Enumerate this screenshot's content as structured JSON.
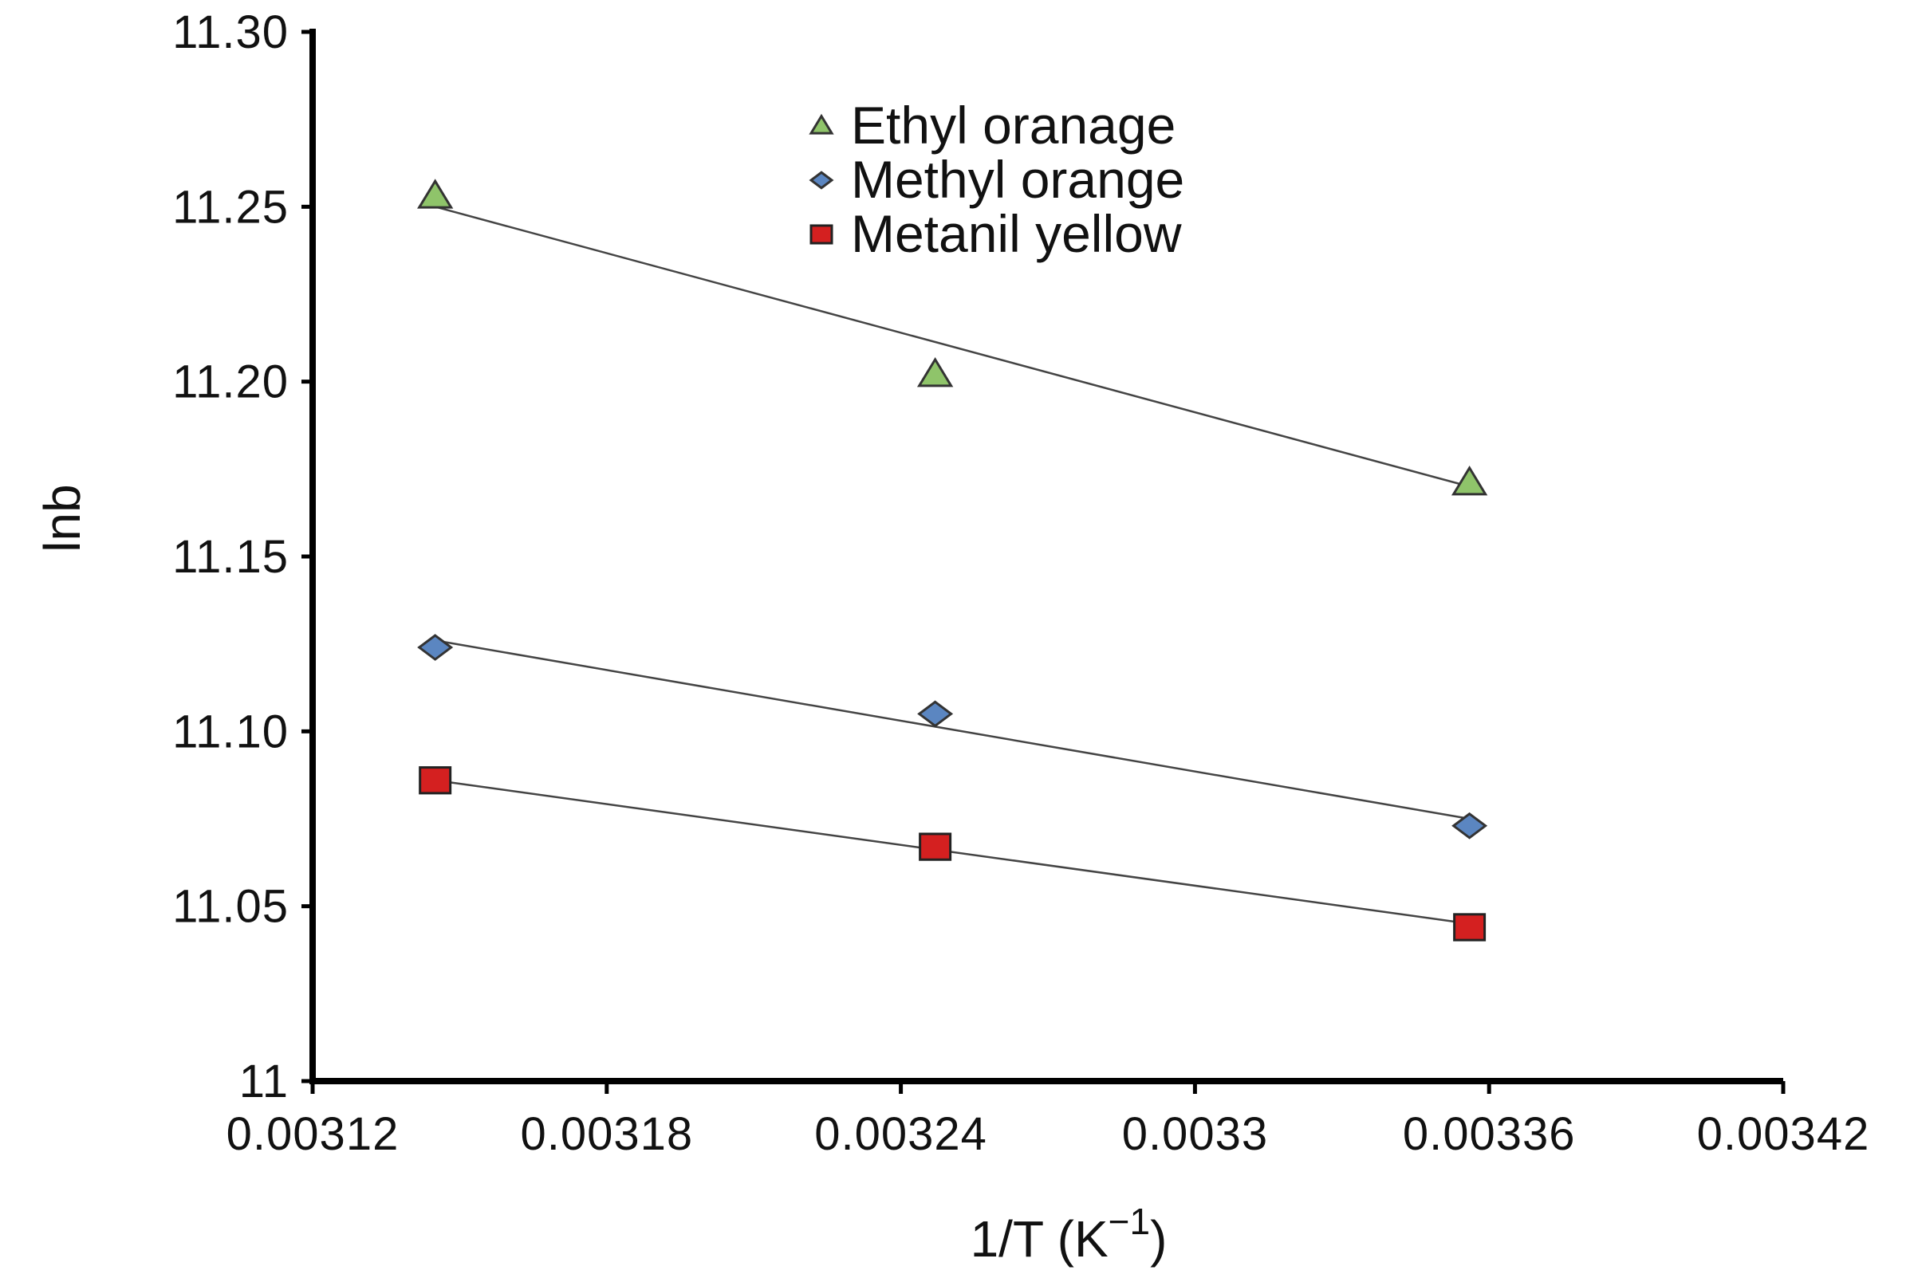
{
  "chart_data": {
    "type": "scatter",
    "title": "",
    "xlabel": "1/T (K",
    "xlabel_sup": "−1",
    "xlabel_close": ")",
    "ylabel": "lnb",
    "xlim": [
      0.00312,
      0.00342
    ],
    "ylim": [
      11,
      11.3
    ],
    "x_ticks": [
      0.00312,
      0.00318,
      0.00324,
      0.0033,
      0.00336,
      0.00342
    ],
    "x_tick_labels": [
      "0.00312",
      "0.00318",
      "0.00324",
      "0.0033",
      "0.00336",
      "0.00342"
    ],
    "y_ticks": [
      11,
      11.05,
      11.1,
      11.15,
      11.2,
      11.25,
      11.3
    ],
    "y_tick_labels": [
      "11",
      "11.05",
      "11.10",
      "11.15",
      "11.20",
      "11.25",
      "11.30"
    ],
    "grid": false,
    "legend_position": "top-center",
    "series": [
      {
        "name": "Ethyl oranage",
        "marker": "triangle",
        "color": "#8fc46a",
        "x": [
          0.003145,
          0.003247,
          0.003356
        ],
        "y": [
          11.253,
          11.202,
          11.171
        ],
        "trendline": {
          "x": [
            0.003145,
            0.003356
          ],
          "y": [
            11.25,
            11.17
          ]
        }
      },
      {
        "name": "Methyl orange",
        "marker": "diamond",
        "color": "#5b86c1",
        "x": [
          0.003145,
          0.003247,
          0.003356
        ],
        "y": [
          11.124,
          11.105,
          11.073
        ],
        "trendline": {
          "x": [
            0.003145,
            0.003356
          ],
          "y": [
            11.126,
            11.075
          ]
        }
      },
      {
        "name": "Metanil yellow",
        "marker": "square",
        "color": "#d42020",
        "x": [
          0.003145,
          0.003247,
          0.003356
        ],
        "y": [
          11.086,
          11.067,
          11.044
        ],
        "trendline": {
          "x": [
            0.003145,
            0.003356
          ],
          "y": [
            11.086,
            11.045
          ]
        }
      }
    ]
  }
}
